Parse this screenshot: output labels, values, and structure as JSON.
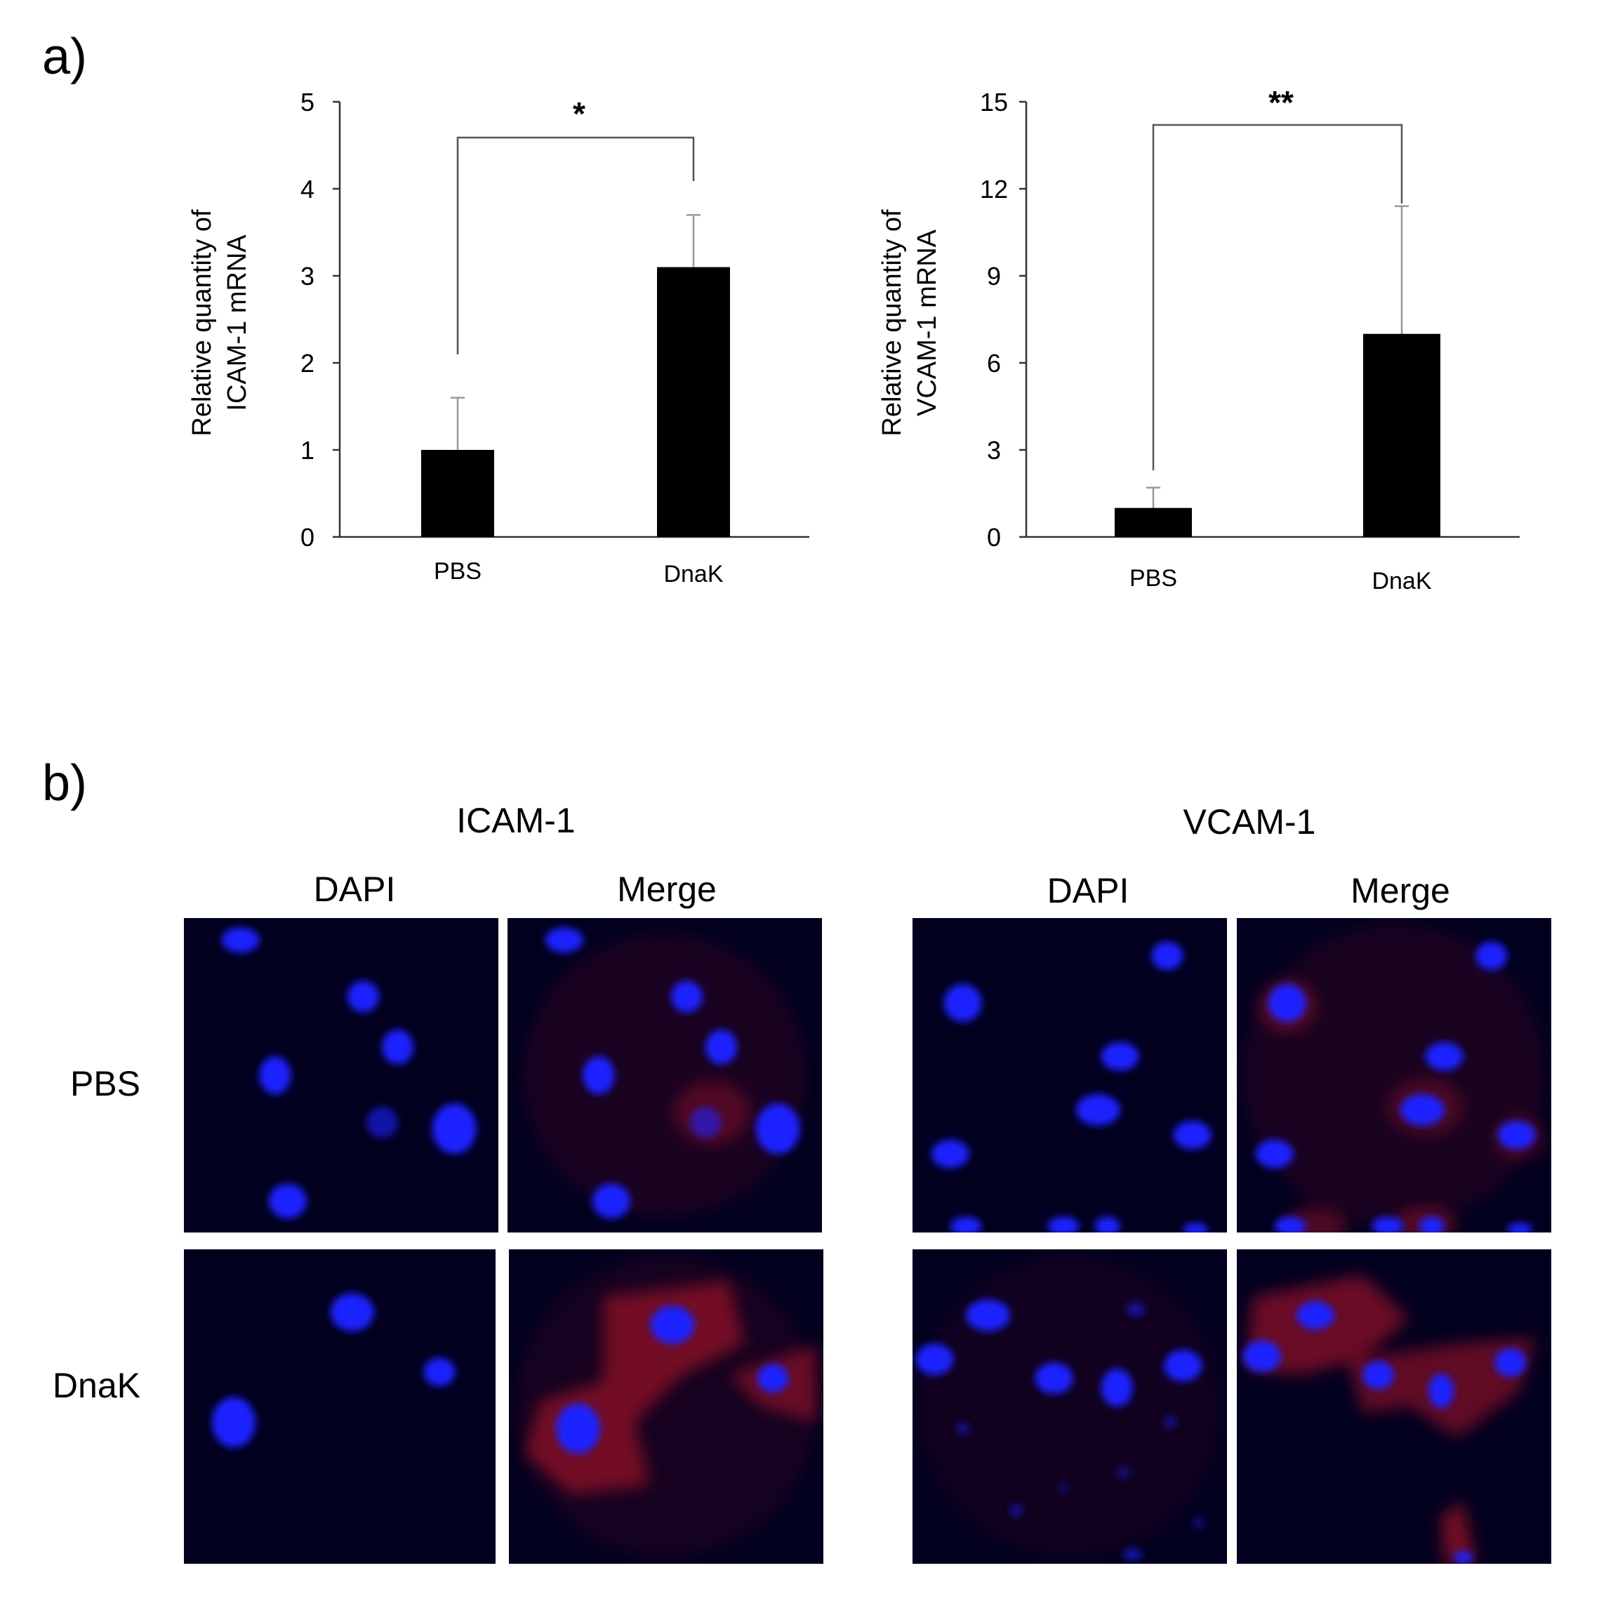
{
  "panels": {
    "a": "a)",
    "b": "b)"
  },
  "chart_data": [
    {
      "type": "bar",
      "categories": [
        "PBS",
        "DnaK"
      ],
      "values": [
        1.0,
        3.1
      ],
      "errors": [
        0.6,
        0.6
      ],
      "ylim": [
        0,
        5
      ],
      "yticks": [
        "0",
        "1",
        "2",
        "3",
        "4",
        "5"
      ],
      "ylabel_line1": "Relative quantity of",
      "ylabel_line2": "ICAM-1 mRNA",
      "significance": "*",
      "bar_color": "#000000"
    },
    {
      "type": "bar",
      "categories": [
        "PBS",
        "DnaK"
      ],
      "values": [
        1.0,
        7.0
      ],
      "errors": [
        0.7,
        4.4
      ],
      "ylim": [
        0,
        15
      ],
      "yticks": [
        "0",
        "3",
        "6",
        "9",
        "12",
        "15"
      ],
      "ylabel_line1": "Relative quantity of",
      "ylabel_line2": "VCAM-1 mRNA",
      "significance": "**",
      "bar_color": "#000000"
    }
  ],
  "micrographs": {
    "groups": [
      {
        "title": "ICAM-1",
        "col1": "DAPI",
        "col2": "Merge"
      },
      {
        "title": "VCAM-1",
        "col1": "DAPI",
        "col2": "Merge"
      }
    ],
    "rows": [
      "PBS",
      "DnaK"
    ],
    "colors": {
      "background": "#02001f",
      "nucleus": "#1a22ff",
      "stain": "#c0182a"
    }
  }
}
